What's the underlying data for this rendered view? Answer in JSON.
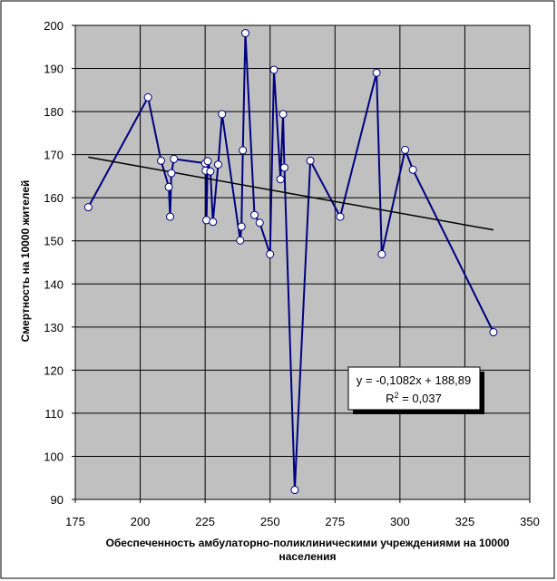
{
  "chart_data": {
    "type": "scatter",
    "title": "",
    "xlabel_lines": [
      "Обеспеченность амбулаторно-поликлиническими учреждениями на 10000",
      "населения"
    ],
    "ylabel": "Смертность на 10000 жителей",
    "xlim": [
      175,
      350
    ],
    "ylim": [
      90,
      200
    ],
    "xticks": [
      "175",
      "200",
      "225",
      "250",
      "275",
      "300",
      "325",
      "350"
    ],
    "yticks": [
      "90",
      "100",
      "110",
      "120",
      "130",
      "140",
      "150",
      "160",
      "170",
      "180",
      "190",
      "200"
    ],
    "grid": true,
    "plot_background": "#c0c0c0",
    "series": [
      {
        "connected": true,
        "line_color": "#000080",
        "marker": "circle",
        "marker_fill": "#ffffff",
        "points": [
          [
            180,
            157.8
          ],
          [
            203,
            183.3
          ],
          [
            208,
            168.6
          ],
          [
            211,
            162.5
          ],
          [
            211.5,
            155.6
          ],
          [
            212,
            165.7
          ],
          [
            213,
            169.0
          ],
          [
            225,
            168.0
          ],
          [
            225.2,
            166.3
          ],
          [
            225.5,
            154.8
          ],
          [
            226,
            168.5
          ],
          [
            227,
            166.1
          ],
          [
            228,
            154.4
          ],
          [
            230,
            167.7
          ],
          [
            231.5,
            179.4
          ],
          [
            238.5,
            150.1
          ],
          [
            239,
            153.3
          ],
          [
            239.5,
            171.0
          ],
          [
            240.5,
            198.2
          ],
          [
            244,
            156.0
          ],
          [
            246,
            154.2
          ],
          [
            250,
            146.9
          ],
          [
            251.5,
            189.7
          ],
          [
            254,
            164.3
          ],
          [
            255,
            179.4
          ],
          [
            255.5,
            167.0
          ],
          [
            259.5,
            92.2
          ],
          [
            265.5,
            168.6
          ],
          [
            277,
            155.6
          ],
          [
            291,
            189.0
          ],
          [
            293,
            146.9
          ],
          [
            302,
            171.1
          ],
          [
            305,
            166.5
          ],
          [
            336,
            128.8
          ]
        ]
      }
    ],
    "trendline": {
      "type": "linear",
      "slope": -0.1082,
      "intercept": 188.89,
      "x_range": [
        180,
        336
      ],
      "color": "#000000",
      "equation_text": "y = -0,1082x + 188,89",
      "r2_label": "R",
      "r2_sup": "2",
      "r2_value_text": " = 0,037"
    }
  }
}
